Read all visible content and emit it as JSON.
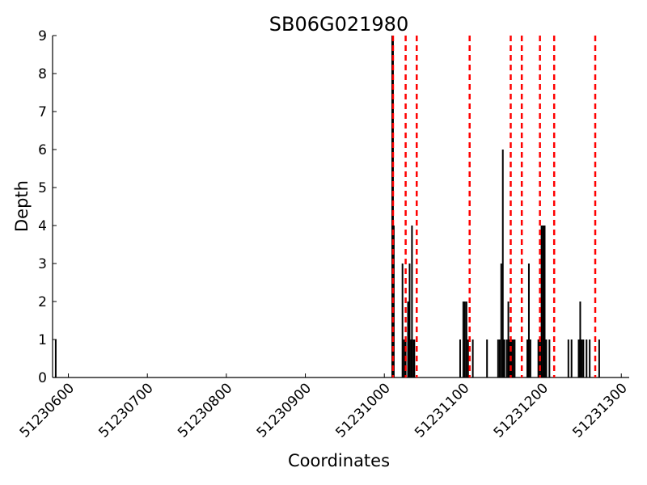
{
  "chart_data": {
    "type": "bar",
    "title": "SB06G021980",
    "xlabel": "Coordinates",
    "ylabel": "Depth",
    "xlim": [
      51230580,
      51231310
    ],
    "ylim": [
      0,
      9
    ],
    "x_ticks": [
      51230600,
      51230700,
      51230800,
      51230900,
      51231000,
      51231100,
      51231200,
      51231300
    ],
    "x_tick_labels": [
      "51230600",
      "51230700",
      "51230800",
      "51230900",
      "51231000",
      "51231100",
      "51231200",
      "51231300"
    ],
    "y_ticks": [
      0,
      1,
      2,
      3,
      4,
      5,
      6,
      7,
      8,
      9
    ],
    "y_tick_labels": [
      "0",
      "1",
      "2",
      "3",
      "4",
      "5",
      "6",
      "7",
      "8",
      "9"
    ],
    "series": [
      {
        "name": "depth",
        "color": "#000000",
        "x": [
          51230584,
          51231010,
          51231011,
          51231012,
          51231023,
          51231025,
          51231027,
          51231030,
          51231032,
          51231034,
          51231035,
          51231037,
          51231038,
          51231096,
          51231100,
          51231102,
          51231104,
          51231106,
          51231112,
          51231130,
          51231144,
          51231146,
          51231148,
          51231150,
          51231151,
          51231152,
          51231155,
          51231157,
          51231159,
          51231161,
          51231163,
          51231165,
          51231181,
          51231183,
          51231185,
          51231195,
          51231197,
          51231199,
          51231201,
          51231203,
          51231205,
          51231209,
          51231233,
          51231237,
          51231246,
          51231248,
          51231250,
          51231252,
          51231256,
          51231260,
          51231272
        ],
        "values": [
          1,
          9,
          9,
          4,
          3,
          1,
          1,
          2,
          3,
          1,
          4,
          1,
          1,
          1,
          2,
          2,
          2,
          1,
          1,
          1,
          1,
          1,
          3,
          6,
          1,
          1,
          1,
          2,
          1,
          1,
          1,
          1,
          1,
          3,
          1,
          1,
          1,
          4,
          4,
          4,
          1,
          1,
          1,
          1,
          1,
          2,
          1,
          1,
          1,
          1,
          1
        ]
      }
    ],
    "markers": {
      "name": "reference-lines",
      "color": "#ff0000",
      "style": "dashed",
      "x": [
        51231011,
        51231027,
        51231041,
        51231108,
        51231160,
        51231174,
        51231197,
        51231215,
        51231267
      ]
    }
  }
}
